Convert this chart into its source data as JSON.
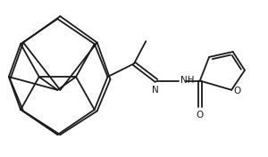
{
  "background_color": "#ffffff",
  "line_color": "#1a1a1a",
  "line_width": 1.3,
  "font_size": 7.5,
  "figsize": [
    3.0,
    1.76
  ],
  "dpi": 100,
  "xlim": [
    0,
    10
  ],
  "ylim": [
    0,
    5.87
  ]
}
